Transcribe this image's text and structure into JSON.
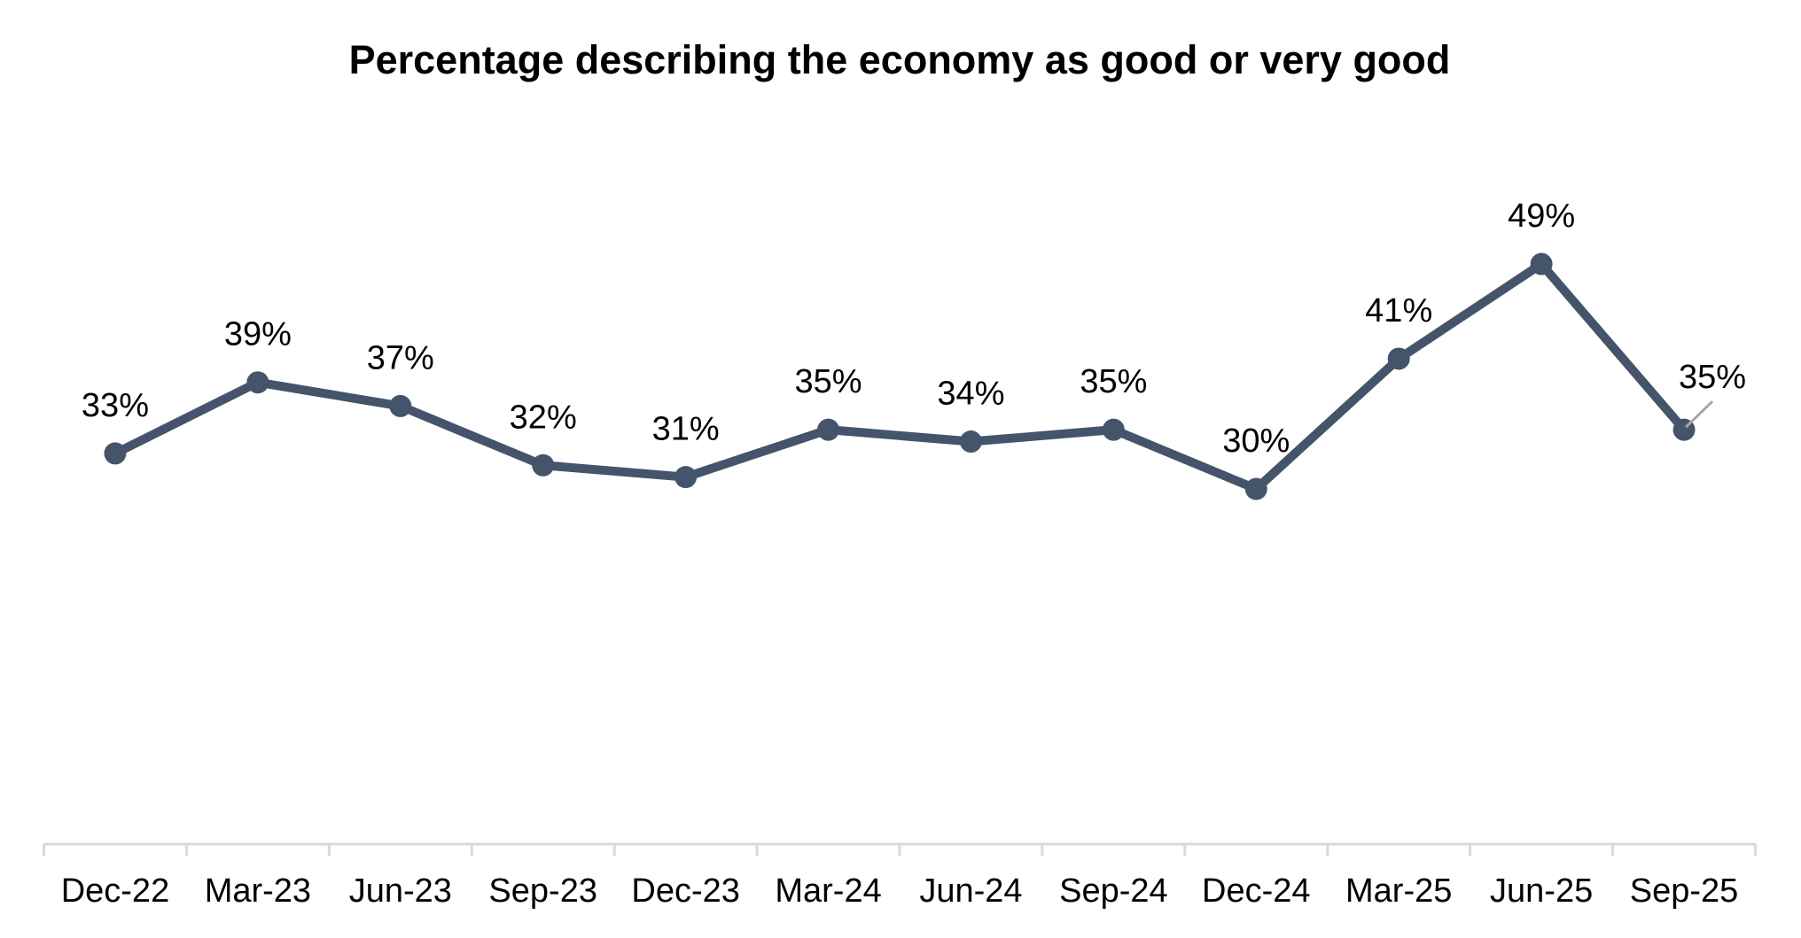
{
  "chart_data": {
    "type": "line",
    "title": "Percentage describing the economy as good or very good",
    "categories": [
      "Dec-22",
      "Mar-23",
      "Jun-23",
      "Sep-23",
      "Dec-23",
      "Mar-24",
      "Jun-24",
      "Sep-24",
      "Dec-24",
      "Mar-25",
      "Jun-25",
      "Sep-25"
    ],
    "series": [
      {
        "values": [
          33,
          39,
          37,
          32,
          31,
          35,
          34,
          35,
          30,
          41,
          49,
          35
        ],
        "labels": [
          "33%",
          "39%",
          "37%",
          "32%",
          "31%",
          "35%",
          "34%",
          "35%",
          "30%",
          "41%",
          "49%",
          "35%"
        ]
      }
    ],
    "xlabel": "",
    "ylabel": "",
    "ylim": [
      0,
      60
    ],
    "grid": false,
    "legend": false,
    "marker": "circle",
    "colors": {
      "line": "#44546A",
      "marker": "#44546A",
      "axis_line": "#D9D9D9",
      "tick": "#D9D9D9",
      "leader_line": "#A6A6A6",
      "text": "#000000",
      "background": "#FFFFFF"
    }
  }
}
